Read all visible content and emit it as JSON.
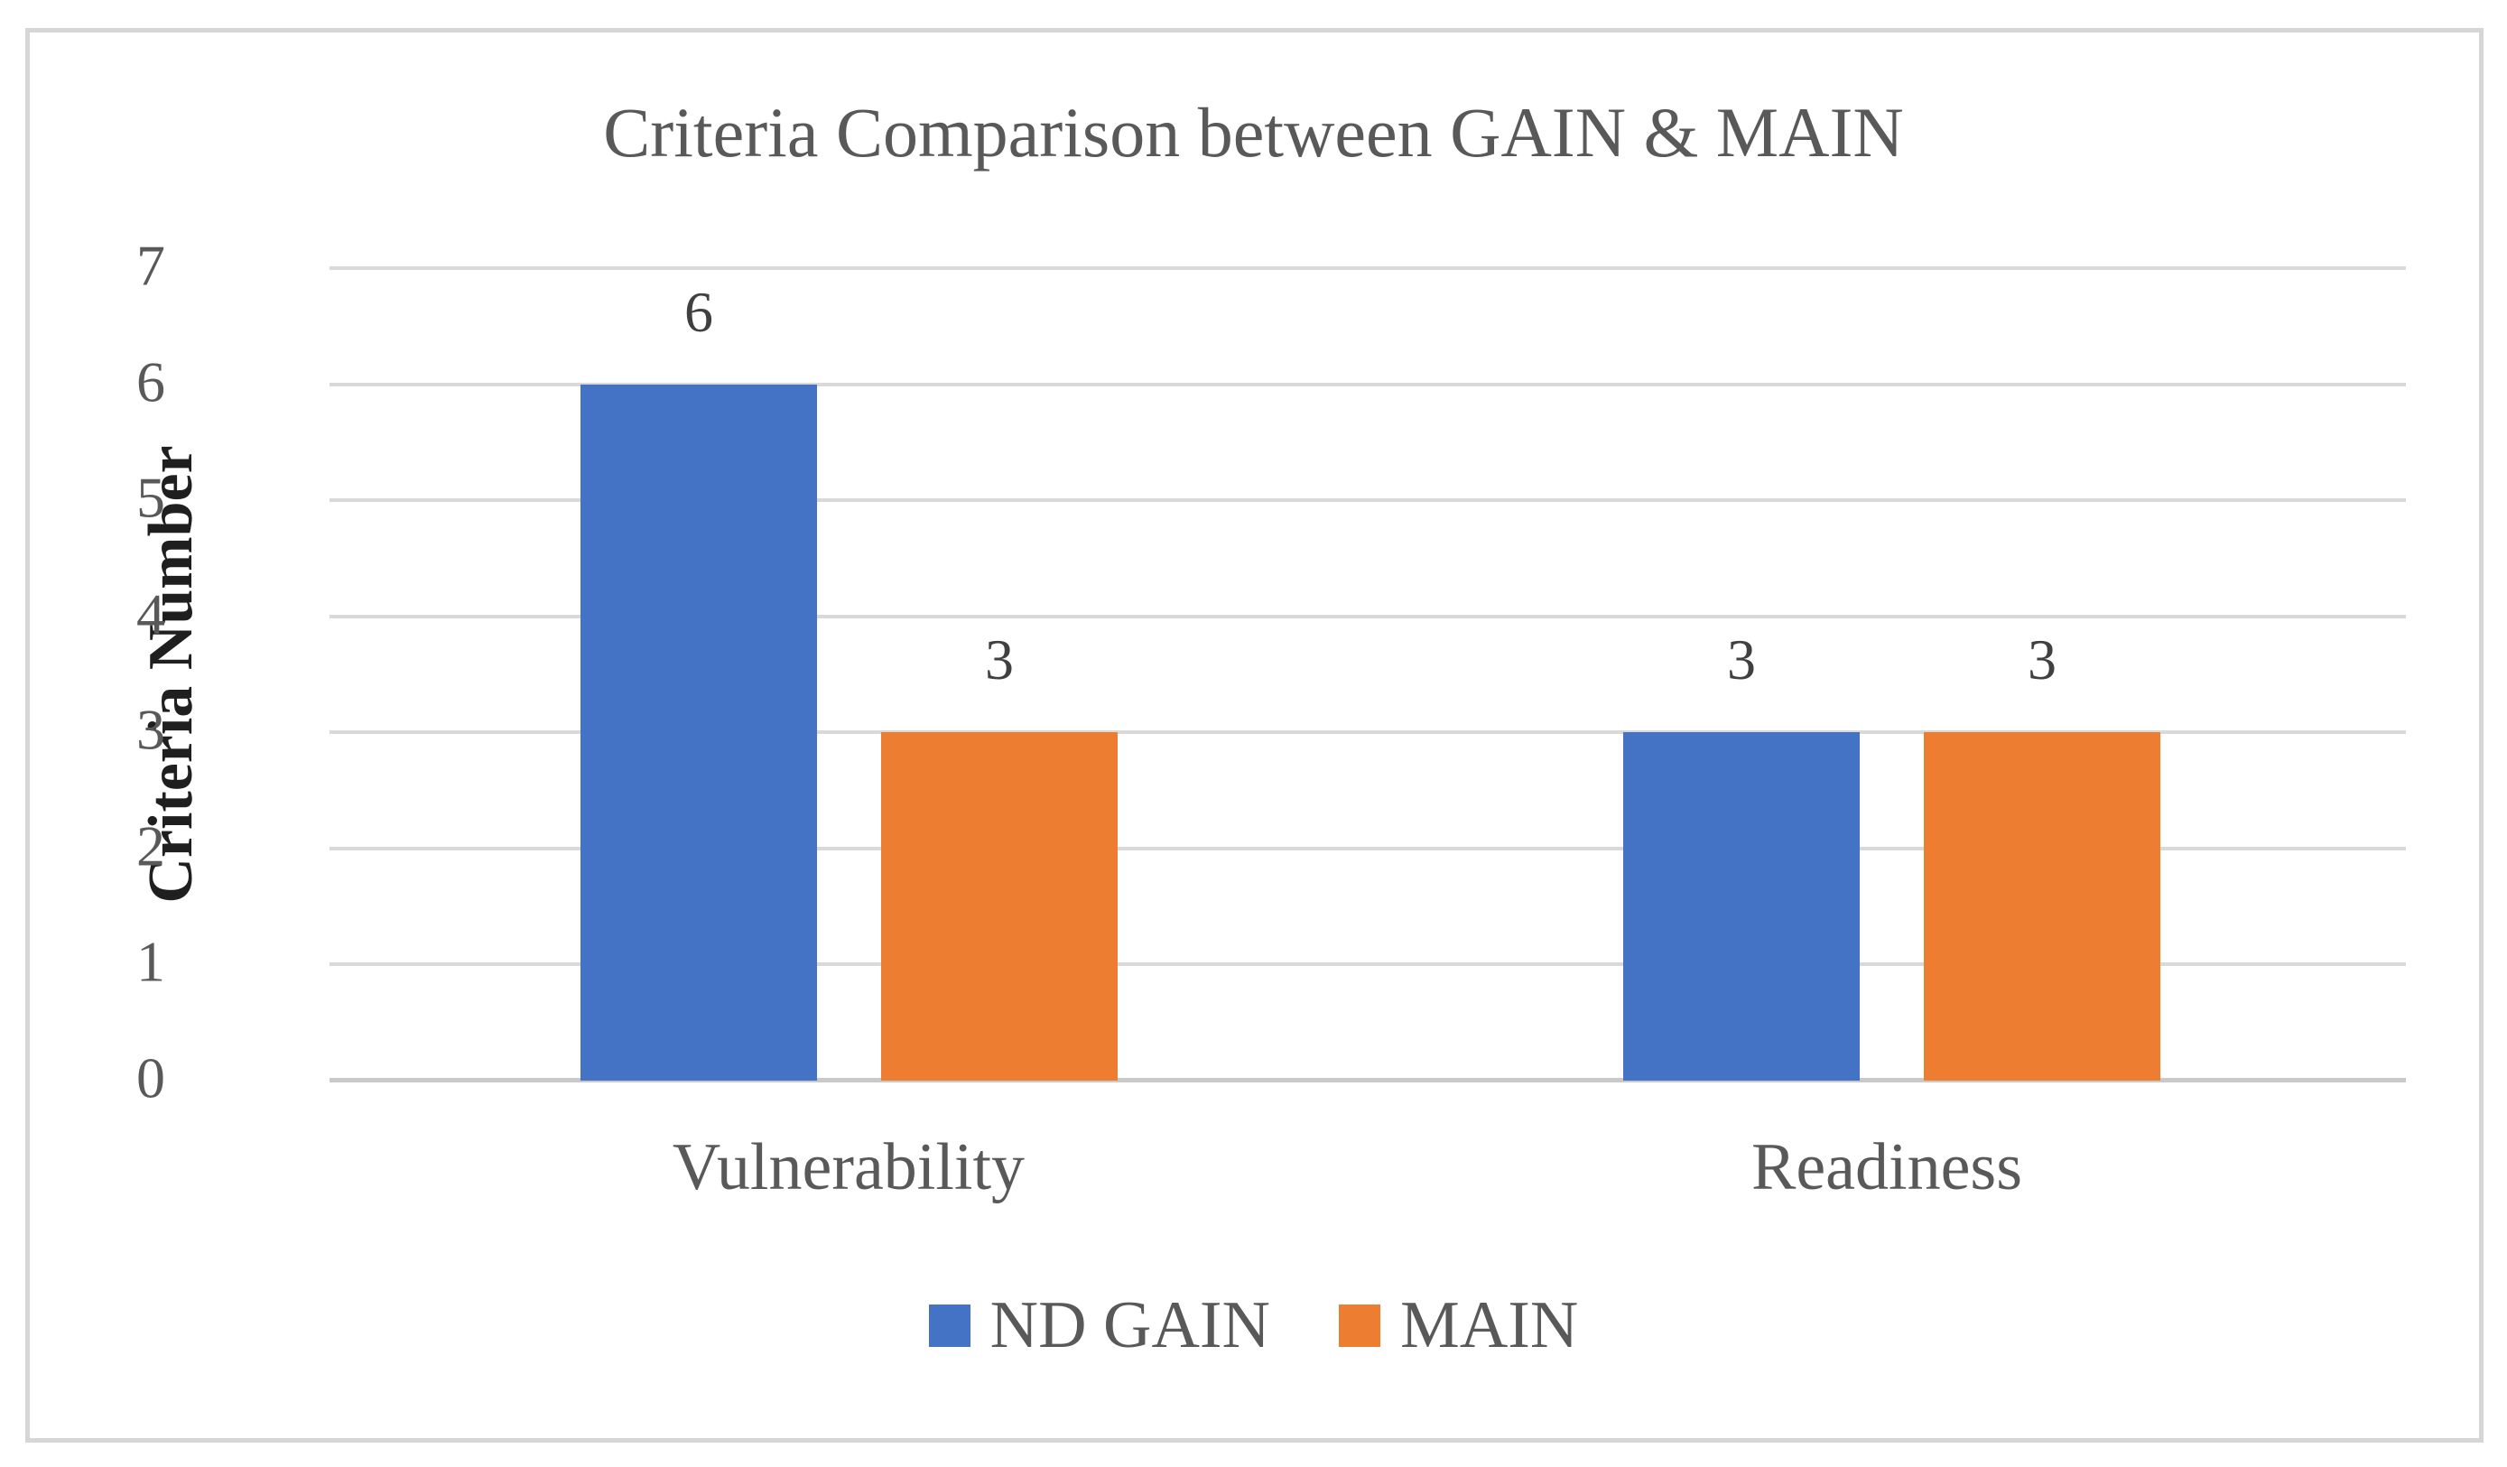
{
  "chart_data": {
    "type": "bar",
    "title": "Criteria Comparison between GAIN & MAIN",
    "categories": [
      "Vulnerability",
      "Readiness"
    ],
    "series": [
      {
        "name": "ND GAIN",
        "color": "#4472C4",
        "values": [
          6,
          3
        ]
      },
      {
        "name": "MAIN",
        "color": "#ED7D31",
        "values": [
          3,
          3
        ]
      }
    ],
    "xlabel": "",
    "ylabel": "Criteria Number",
    "ylim": [
      0,
      7
    ],
    "yticks": [
      0,
      1,
      2,
      3,
      4,
      5,
      6,
      7
    ],
    "grid": "horizontal",
    "legend_position": "bottom",
    "data_labels": true
  },
  "colors": {
    "grid": "#D9D9D9",
    "axis_line": "#C9C9C9",
    "chart_border": "#D6D6D6",
    "text_gray": "#595959",
    "data_label": "#404040",
    "axis_title": "#1F1F1F"
  }
}
